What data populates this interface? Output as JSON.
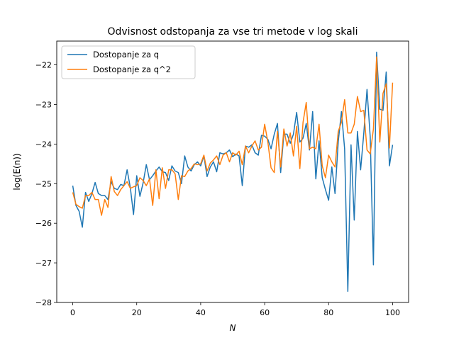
{
  "chart_data": {
    "type": "line",
    "title": "Odvisnost odstopanja  za vse tri metode v log skali",
    "xlabel": "N",
    "ylabel": "log(E(n))",
    "xlim": [
      -5,
      105
    ],
    "ylim": [
      -28,
      -21.4
    ],
    "xticks": [
      0,
      20,
      40,
      60,
      80,
      100
    ],
    "yticks": [
      -28,
      -27,
      -26,
      -25,
      -24,
      -23,
      -22
    ],
    "grid": false,
    "legend_position": "top-left",
    "series": [
      {
        "name": "Dostopanje za q",
        "color": "#1f77b4",
        "x": [
          0,
          1,
          2,
          3,
          4,
          5,
          6,
          7,
          8,
          9,
          10,
          11,
          12,
          13,
          14,
          15,
          16,
          17,
          18,
          19,
          20,
          21,
          22,
          23,
          24,
          25,
          26,
          27,
          28,
          29,
          30,
          31,
          32,
          33,
          34,
          35,
          36,
          37,
          38,
          39,
          40,
          41,
          42,
          43,
          44,
          45,
          46,
          47,
          48,
          49,
          50,
          51,
          52,
          53,
          54,
          55,
          56,
          57,
          58,
          59,
          60,
          61,
          62,
          63,
          64,
          65,
          66,
          67,
          68,
          69,
          70,
          71,
          72,
          73,
          74,
          75,
          76,
          77,
          78,
          79,
          80,
          81,
          82,
          83,
          84,
          85,
          86,
          87,
          88,
          89,
          90,
          91,
          92,
          93,
          94,
          95,
          96,
          97,
          98,
          99,
          100
        ],
        "values": [
          -25.05,
          -25.55,
          -25.7,
          -26.1,
          -25.22,
          -25.45,
          -25.25,
          -24.97,
          -25.25,
          -25.3,
          -25.3,
          -25.4,
          -24.95,
          -25.12,
          -25.15,
          -25.02,
          -25.05,
          -24.65,
          -25.1,
          -25.78,
          -24.8,
          -25.32,
          -24.98,
          -24.52,
          -24.9,
          -24.8,
          -24.68,
          -24.58,
          -24.7,
          -24.72,
          -24.92,
          -24.55,
          -24.68,
          -24.72,
          -25.0,
          -24.3,
          -24.58,
          -24.68,
          -24.52,
          -24.45,
          -24.55,
          -24.3,
          -24.82,
          -24.58,
          -24.45,
          -24.7,
          -24.22,
          -24.25,
          -24.22,
          -24.15,
          -24.32,
          -24.25,
          -24.3,
          -25.05,
          -24.05,
          -24.08,
          -24.02,
          -24.22,
          -24.28,
          -23.78,
          -23.8,
          -23.88,
          -24.12,
          -23.75,
          -23.48,
          -24.72,
          -23.75,
          -23.75,
          -23.98,
          -23.75,
          -23.2,
          -23.95,
          -23.85,
          -23.48,
          -24.15,
          -23.18,
          -24.88,
          -23.92,
          -24.85,
          -25.15,
          -25.42,
          -24.58,
          -25.25,
          -23.95,
          -23.18,
          -24.12,
          -27.72,
          -24.02,
          -25.92,
          -23.68,
          -24.65,
          -23.72,
          -22.62,
          -23.82,
          -27.05,
          -21.68,
          -23.12,
          -23.15,
          -22.18,
          -24.55,
          -24.02
        ]
      },
      {
        "name": "Dostopanje za q^2",
        "color": "#ff7f0e",
        "x": [
          0,
          1,
          2,
          3,
          4,
          5,
          6,
          7,
          8,
          9,
          10,
          11,
          12,
          13,
          14,
          15,
          16,
          17,
          18,
          19,
          20,
          21,
          22,
          23,
          24,
          25,
          26,
          27,
          28,
          29,
          30,
          31,
          32,
          33,
          34,
          35,
          36,
          37,
          38,
          39,
          40,
          41,
          42,
          43,
          44,
          45,
          46,
          47,
          48,
          49,
          50,
          51,
          52,
          53,
          54,
          55,
          56,
          57,
          58,
          59,
          60,
          61,
          62,
          63,
          64,
          65,
          66,
          67,
          68,
          69,
          70,
          71,
          72,
          73,
          74,
          75,
          76,
          77,
          78,
          79,
          80,
          81,
          82,
          83,
          84,
          85,
          86,
          87,
          88,
          89,
          90,
          91,
          92,
          93,
          94,
          95,
          96,
          97,
          98,
          99,
          100
        ],
        "values": [
          -25.22,
          -25.52,
          -25.58,
          -25.62,
          -25.3,
          -25.3,
          -25.22,
          -25.4,
          -25.4,
          -25.8,
          -25.4,
          -25.6,
          -24.82,
          -25.2,
          -25.3,
          -25.15,
          -25.05,
          -24.95,
          -25.12,
          -25.08,
          -25.05,
          -24.85,
          -24.92,
          -25.05,
          -24.88,
          -25.55,
          -24.65,
          -25.38,
          -24.6,
          -25.12,
          -24.65,
          -24.65,
          -24.75,
          -25.4,
          -24.8,
          -24.82,
          -24.68,
          -24.62,
          -24.5,
          -24.52,
          -24.5,
          -24.28,
          -24.68,
          -24.48,
          -24.4,
          -24.3,
          -24.52,
          -24.28,
          -24.22,
          -24.45,
          -24.22,
          -24.28,
          -24.18,
          -24.52,
          -24.05,
          -24.22,
          -24.05,
          -23.92,
          -24.15,
          -24.08,
          -23.5,
          -23.95,
          -24.6,
          -24.72,
          -23.68,
          -24.58,
          -23.62,
          -24.05,
          -23.72,
          -24.3,
          -23.55,
          -24.62,
          -23.45,
          -22.95,
          -24.12,
          -24.08,
          -24.12,
          -23.5,
          -24.55,
          -24.85,
          -24.28,
          -24.45,
          -24.58,
          -23.68,
          -23.45,
          -22.88,
          -23.72,
          -23.72,
          -23.5,
          -22.8,
          -23.18,
          -23.15,
          -24.15,
          -24.25,
          -23.62,
          -21.8,
          -23.95,
          -22.72,
          -22.48,
          -24.1,
          -22.45
        ]
      }
    ]
  }
}
